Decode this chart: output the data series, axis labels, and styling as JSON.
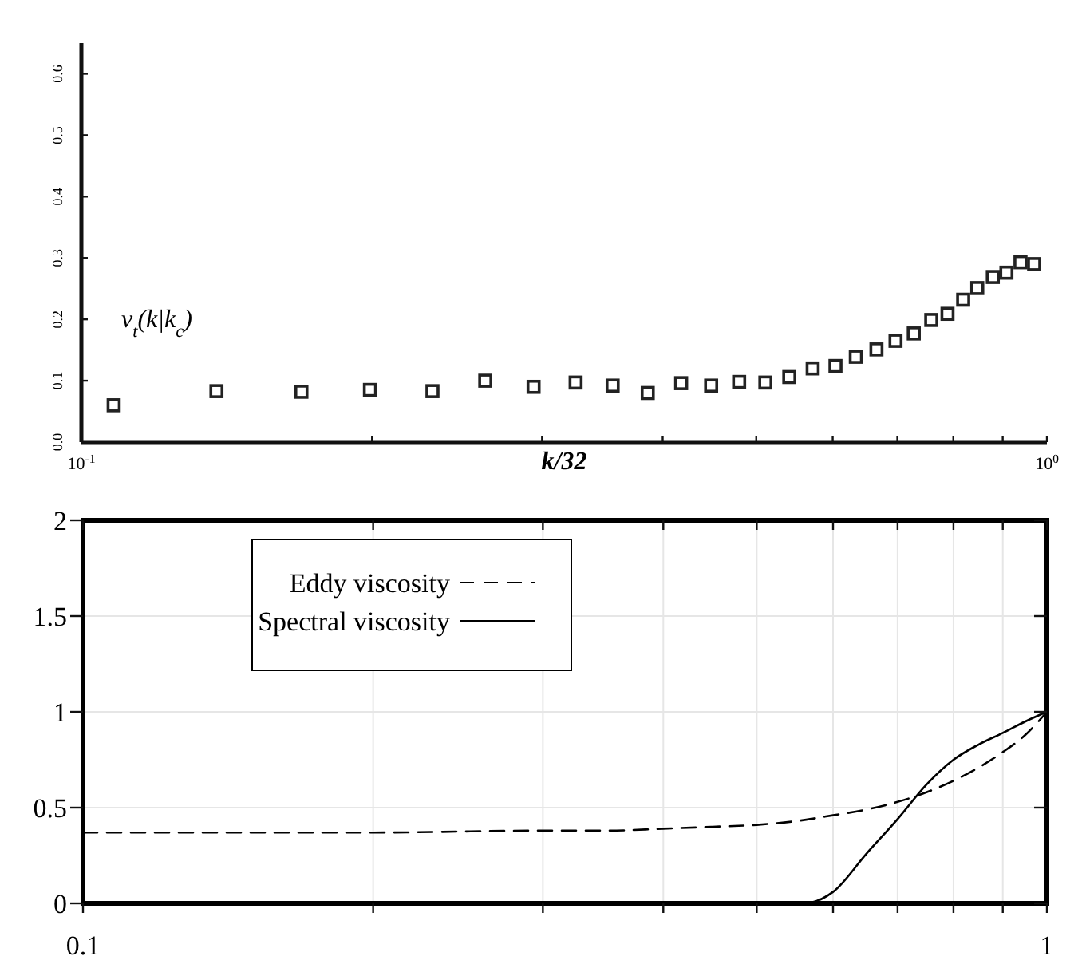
{
  "chart_data": [
    {
      "type": "scatter",
      "xlabel": "k/32",
      "ylabel": "ν$_{t}$(k|k$_{c}$)",
      "log": "x",
      "marker": "square",
      "grid": false,
      "xlim": [
        0.1,
        1
      ],
      "xticks": [
        {
          "value": 0.1,
          "label": "10$^{-1}$"
        },
        {
          "value": 0.2,
          "label": null
        },
        {
          "value": 0.3,
          "label": null
        },
        {
          "value": 0.4,
          "label": null
        },
        {
          "value": 0.5,
          "label": null
        },
        {
          "value": 0.6,
          "label": null
        },
        {
          "value": 0.7,
          "label": null
        },
        {
          "value": 0.8,
          "label": null
        },
        {
          "value": 0.9,
          "label": null
        },
        {
          "value": 1,
          "label": "10$^{0}$"
        }
      ],
      "ylim": [
        0,
        0.65
      ],
      "yticks": [
        {
          "value": 0,
          "label": "0.0"
        },
        0.1,
        0.2,
        0.3,
        0.4,
        0.5,
        0.6
      ],
      "series": [
        {
          "color": "#222222",
          "x": [
            0.108,
            0.138,
            0.169,
            0.199,
            0.231,
            0.262,
            0.294,
            0.325,
            0.355,
            0.386,
            0.418,
            0.449,
            0.48,
            0.511,
            0.541,
            0.572,
            0.604,
            0.634,
            0.666,
            0.697,
            0.728,
            0.759,
            0.789,
            0.819,
            0.847,
            0.879,
            0.908,
            0.939,
            0.97
          ],
          "values": [
            0.06,
            0.083,
            0.082,
            0.085,
            0.083,
            0.1,
            0.09,
            0.097,
            0.092,
            0.08,
            0.096,
            0.092,
            0.098,
            0.097,
            0.106,
            0.12,
            0.124,
            0.139,
            0.151,
            0.165,
            0.177,
            0.199,
            0.209,
            0.232,
            0.251,
            0.269,
            0.276,
            0.293,
            0.29
          ]
        }
      ]
    },
    {
      "type": "line",
      "log": "x",
      "grid": true,
      "legend": "top left",
      "xlim": [
        0.1,
        1
      ],
      "xticks": [
        0.1,
        {
          "value": 0.2,
          "label": null
        },
        {
          "value": 0.3,
          "label": null
        },
        {
          "value": 0.4,
          "label": null
        },
        {
          "value": 0.5,
          "label": null
        },
        {
          "value": 0.6,
          "label": null
        },
        {
          "value": 0.7,
          "label": null
        },
        {
          "value": 0.8,
          "label": null
        },
        {
          "value": 0.9,
          "label": null
        },
        1
      ],
      "ylim": [
        0,
        2
      ],
      "yticks": [
        0,
        0.5,
        1,
        1.5,
        2
      ],
      "series": [
        {
          "name": "Eddy viscosity",
          "color": "#000000",
          "line_style": "dashed",
          "x": [
            0.1,
            0.2,
            0.3,
            0.35,
            0.4,
            0.45,
            0.5,
            0.55,
            0.6,
            0.65,
            0.7,
            0.75,
            0.8,
            0.85,
            0.9,
            0.95,
            1
          ],
          "values": [
            0.37,
            0.37,
            0.38,
            0.38,
            0.39,
            0.4,
            0.41,
            0.43,
            0.46,
            0.49,
            0.53,
            0.58,
            0.64,
            0.71,
            0.79,
            0.88,
            1.0
          ]
        },
        {
          "name": "Spectral viscosity",
          "color": "#000000",
          "line_style": "solid",
          "x": [
            0.1,
            0.56,
            0.6,
            0.65,
            0.7,
            0.75,
            0.8,
            0.85,
            0.9,
            0.95,
            1
          ],
          "values": [
            0,
            0,
            0.06,
            0.26,
            0.44,
            0.62,
            0.75,
            0.83,
            0.89,
            0.95,
            1
          ]
        }
      ]
    }
  ]
}
